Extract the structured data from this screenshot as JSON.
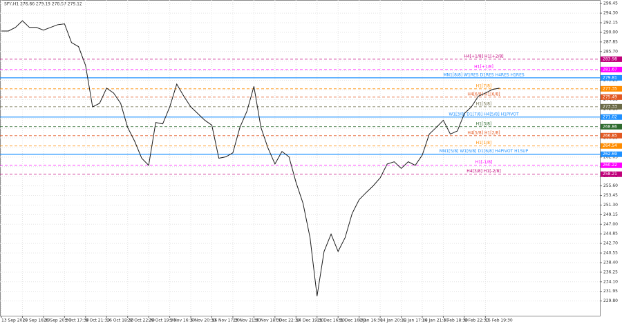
{
  "chart_data": {
    "type": "line",
    "title": "SPY,H1  278.86 279.19 278.57 279.12",
    "categories": [
      "13 Sep 2018",
      null,
      null,
      "20 Sep 16:30",
      null,
      null,
      "26 Sep 20:30",
      null,
      null,
      "3 Oct 17:30",
      null,
      null,
      "9 Oct 21:30",
      null,
      null,
      "16 Oct 18:30",
      null,
      null,
      "22 Oct 22:30",
      null,
      null,
      "29 Oct 19:30",
      null,
      null,
      "5 Nov 16:30",
      null,
      null,
      "9 Nov 20:30",
      null,
      null,
      "16 Nov 17:30",
      null,
      null,
      "23 Nov 21:30",
      null,
      null,
      "30 Nov 18:30",
      null,
      null,
      "7 Dec 22:30",
      null,
      null,
      "14 Dec 19:30",
      null,
      null,
      "21 Dec 16:30",
      null,
      null,
      "31 Dec 16:30",
      null,
      null,
      "8 Jan 16:30",
      null,
      null,
      "14 Jan 20:30",
      null,
      null,
      "22 Jan 17:30",
      null,
      null,
      "28 Jan 21:30",
      null,
      null,
      "4 Feb 18:30",
      null,
      null,
      "8 Feb 22:30",
      null,
      null,
      "15 Feb 19:30",
      null,
      null
    ],
    "series": [
      {
        "name": "SPY",
        "color": "#1a1a1a",
        "values": [
          290.3,
          290.3,
          291.1,
          292.6,
          291.1,
          291.1,
          290.5,
          291.1,
          291.7,
          291.9,
          287.7,
          286.8,
          282.6,
          273.3,
          274.1,
          277.5,
          276.4,
          274.1,
          268.7,
          265.6,
          261.8,
          260.2,
          269.8,
          269.5,
          273.3,
          278.4,
          275.7,
          273.3,
          271.8,
          270.3,
          269.2,
          261.8,
          262.1,
          263.0,
          268.7,
          272.3,
          277.9,
          268.7,
          264.1,
          260.5,
          263.3,
          262.1,
          256.4,
          251.7,
          244.0,
          230.9,
          240.9,
          244.8,
          240.9,
          244.0,
          249.4,
          252.5,
          254.1,
          255.6,
          257.4,
          260.5,
          261.0,
          259.5,
          261.0,
          260.2,
          262.5,
          267.2,
          268.7,
          270.3,
          267.2,
          267.9,
          271.8,
          273.3,
          275.7,
          276.4,
          277.2,
          277.5
        ]
      }
    ],
    "ylim": [
      226.5,
      297.25
    ],
    "yticks": [
      {
        "value": 229.8,
        "label": "229.80"
      },
      231.95,
      {
        "value": 234.1,
        "label": "234.10"
      },
      236.25,
      {
        "value": 238.4,
        "label": "238.40"
      },
      240.55,
      {
        "value": 242.7,
        "label": "242.70"
      },
      244.85,
      {
        "value": 247,
        "label": "247.00"
      },
      249.15,
      {
        "value": 251.3,
        "label": "251.30"
      },
      253.45,
      {
        "value": 255.6,
        "label": "255.60"
      },
      257.75,
      {
        "value": 259.9,
        "label": "259.90"
      },
      262.05,
      {
        "value": 264.2,
        "label": "264.20"
      },
      266.35,
      {
        "value": 268.5,
        "label": "268.50"
      },
      270.65,
      {
        "value": 272.8,
        "label": "272.80"
      },
      274.95,
      {
        "value": 277.1,
        "label": "277.10"
      },
      279.25,
      {
        "value": 281.4,
        "label": "281.40"
      },
      283.55,
      {
        "value": 285.7,
        "label": "285.70"
      },
      287.85,
      {
        "value": 290,
        "label": "290.00"
      },
      292.15,
      {
        "value": 294.3,
        "label": "294.30"
      },
      296.45
    ],
    "grid": true,
    "levels": [
      {
        "value": 283.98,
        "label": "H4[+1/8] H1[+2/8]",
        "color": "#c0007a",
        "dashed": true
      },
      {
        "value": 281.67,
        "label": "H1[+1/8]",
        "color": "#ff00ff",
        "dashed": true
      },
      {
        "value": 279.81,
        "label": "MN1[8/8] W1RES D1RES H4RES H1RES",
        "color": "#1e90ff",
        "dashed": false
      },
      {
        "value": 277.35,
        "label": "H1[7/8]",
        "color": "#ff8c00",
        "dashed": true
      },
      {
        "value": 275.49,
        "label": "H4[6/8] H1[6/8]",
        "color": "#e25822",
        "dashed": true
      },
      {
        "value": 273.33,
        "label": "H1[5/8]",
        "color": "#6b6b47",
        "dashed": true
      },
      {
        "value": 271.02,
        "label": "W1[3/8] D1[7/8] H4[5/8] H1PIVOT",
        "color": "#1e90ff",
        "dashed": false
      },
      {
        "value": 268.86,
        "label": "H1[3/8]",
        "color": "#2e6b2e",
        "dashed": true
      },
      {
        "value": 266.85,
        "label": "H4[5/8] H1[2/8]",
        "color": "#e25822",
        "dashed": true
      },
      {
        "value": 264.54,
        "label": "H1[1/8]",
        "color": "#ff8c00",
        "dashed": true
      },
      {
        "value": 262.69,
        "label": "MN1[5/8] W1[6/8] D1[6/8] H4PIVOT H1SUP",
        "color": "#1e90ff",
        "dashed": false
      },
      {
        "value": 260.22,
        "label": "H1[-1/8]",
        "color": "#ff00ff",
        "dashed": true
      },
      {
        "value": 258.21,
        "label": "H4[3/8] H1[-2/8]",
        "color": "#c0007a",
        "dashed": true
      }
    ]
  }
}
